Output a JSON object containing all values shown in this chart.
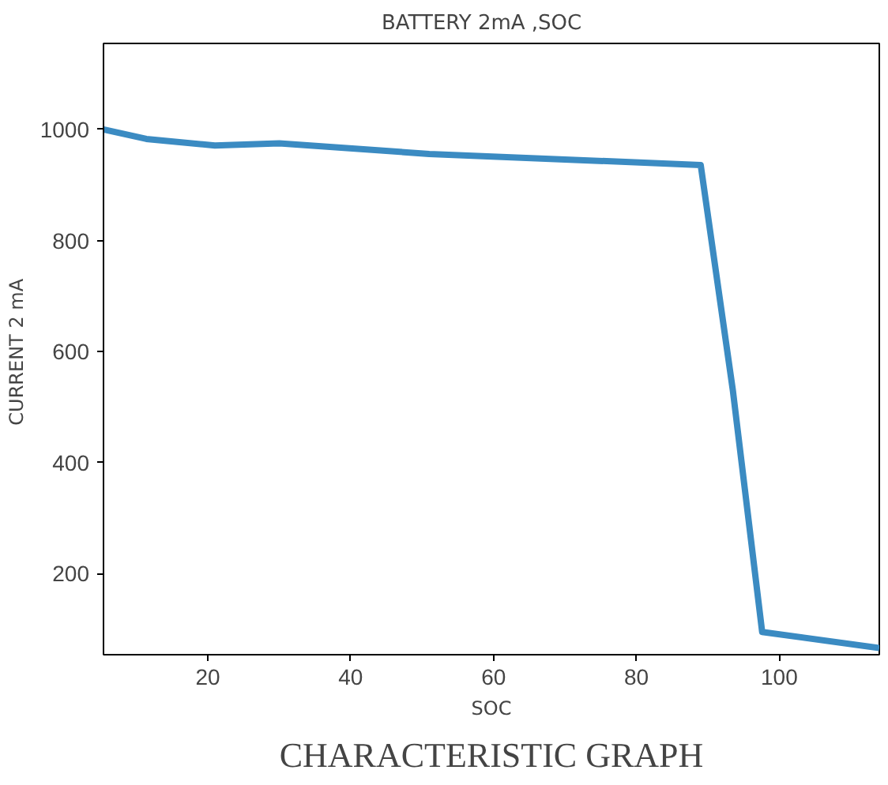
{
  "chart_data": {
    "type": "line",
    "title": "BATTERY  2mA   ,SOC",
    "xlabel": "SOC",
    "ylabel": "CURRENT  2 mA",
    "annotations": [
      "CHARACTERISTIC GRAPH"
    ],
    "x": [
      5.4,
      11.4,
      21,
      30,
      51,
      89,
      93.5,
      97.6,
      114
    ],
    "series": [
      {
        "color": "#3b8bc2",
        "values": [
          1000,
          983,
          971,
          975,
          956,
          936,
          530,
          95,
          66
        ]
      }
    ],
    "xlim": [
      5.4,
      114
    ],
    "ylim": [
      54,
      1155
    ],
    "xticks": [
      20,
      40,
      60,
      80,
      100
    ],
    "yticks": [
      200,
      400,
      600,
      800,
      1000
    ],
    "grid": false
  }
}
